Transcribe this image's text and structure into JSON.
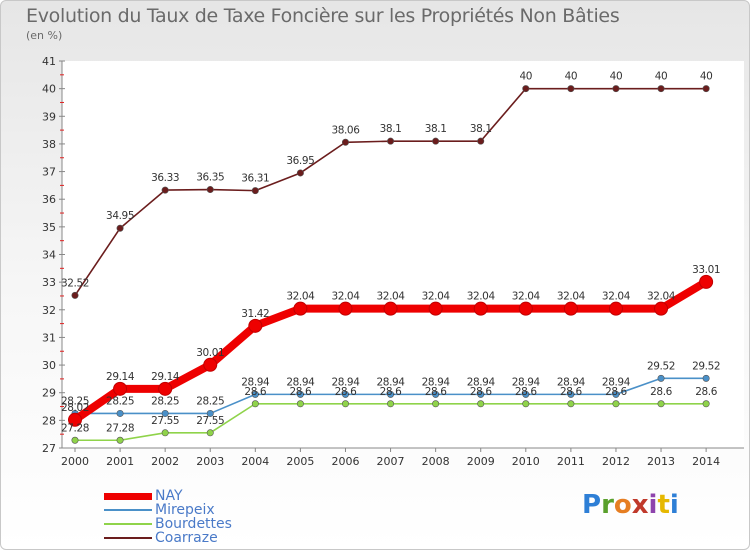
{
  "header": {
    "title": "Evolution du Taux de Taxe Foncière sur les Propriétés Non Bâties",
    "unit": "(en %)"
  },
  "brand": {
    "letters": [
      "P",
      "r",
      "o",
      "x",
      "i",
      "t",
      "i"
    ],
    "colors": [
      "#2e7fd6",
      "#5aa02c",
      "#e67e22",
      "#c0392b",
      "#8e44ad",
      "#e6b800",
      "#2e7fd6"
    ]
  },
  "chart_data": {
    "type": "line",
    "title": "Evolution du Taux de Taxe Foncière sur les Propriétés Non Bâties",
    "ylabel": "(en %)",
    "xlabel": "",
    "categories": [
      "2000",
      "2001",
      "2002",
      "2003",
      "2004",
      "2005",
      "2006",
      "2007",
      "2008",
      "2009",
      "2010",
      "2011",
      "2012",
      "2013",
      "2014"
    ],
    "ylim": [
      27,
      41
    ],
    "yticks": [
      "27",
      "28",
      "29",
      "30",
      "31",
      "32",
      "33",
      "34",
      "35",
      "36",
      "37",
      "38",
      "39",
      "40",
      "41"
    ],
    "grid": false,
    "legend_position": "bottom-left",
    "series": [
      {
        "name": "NAY",
        "color": "#ee0000",
        "bold": true,
        "values": [
          28.02,
          29.14,
          29.14,
          30.01,
          31.42,
          32.04,
          32.04,
          32.04,
          32.04,
          32.04,
          32.04,
          32.04,
          32.04,
          32.04,
          33.01
        ],
        "labels": [
          "28.02",
          "29.14",
          "29.14",
          "30.01",
          "31.42",
          "32.04",
          "32.04",
          "32.04",
          "32.04",
          "32.04",
          "32.04",
          "32.04",
          "32.04",
          "32.04",
          "33.01"
        ]
      },
      {
        "name": "Mirepeix",
        "color": "#4a90c8",
        "bold": false,
        "values": [
          28.25,
          28.25,
          28.25,
          28.25,
          28.94,
          28.94,
          28.94,
          28.94,
          28.94,
          28.94,
          28.94,
          28.94,
          28.94,
          29.52,
          29.52
        ],
        "labels": [
          "28.25",
          "28.25",
          "28.25",
          "28.25",
          "28.94",
          "28.94",
          "28.94",
          "28.94",
          "28.94",
          "28.94",
          "28.94",
          "28.94",
          "28.94",
          "29.52",
          "29.52"
        ]
      },
      {
        "name": "Bourdettes",
        "color": "#8fd34a",
        "bold": false,
        "values": [
          27.28,
          27.28,
          27.55,
          27.55,
          28.6,
          28.6,
          28.6,
          28.6,
          28.6,
          28.6,
          28.6,
          28.6,
          28.6,
          28.6,
          28.6
        ],
        "labels": [
          "27.28",
          "27.28",
          "27.55",
          "27.55",
          "28.6",
          "28.6",
          "28.6",
          "28.6",
          "28.6",
          "28.6",
          "28.6",
          "28.6",
          "28.6",
          "28.6",
          "28.6"
        ]
      },
      {
        "name": "Coarraze",
        "color": "#6b1d1d",
        "bold": false,
        "values": [
          32.52,
          34.95,
          36.33,
          36.35,
          36.31,
          36.95,
          38.06,
          38.1,
          38.1,
          38.1,
          40,
          40,
          40,
          40,
          40
        ],
        "labels": [
          "32.52",
          "34.95",
          "36.33",
          "36.35",
          "36.31",
          "36.95",
          "38.06",
          "38.1",
          "38.1",
          "38.1",
          "40",
          "40",
          "40",
          "40",
          "40"
        ]
      }
    ]
  }
}
